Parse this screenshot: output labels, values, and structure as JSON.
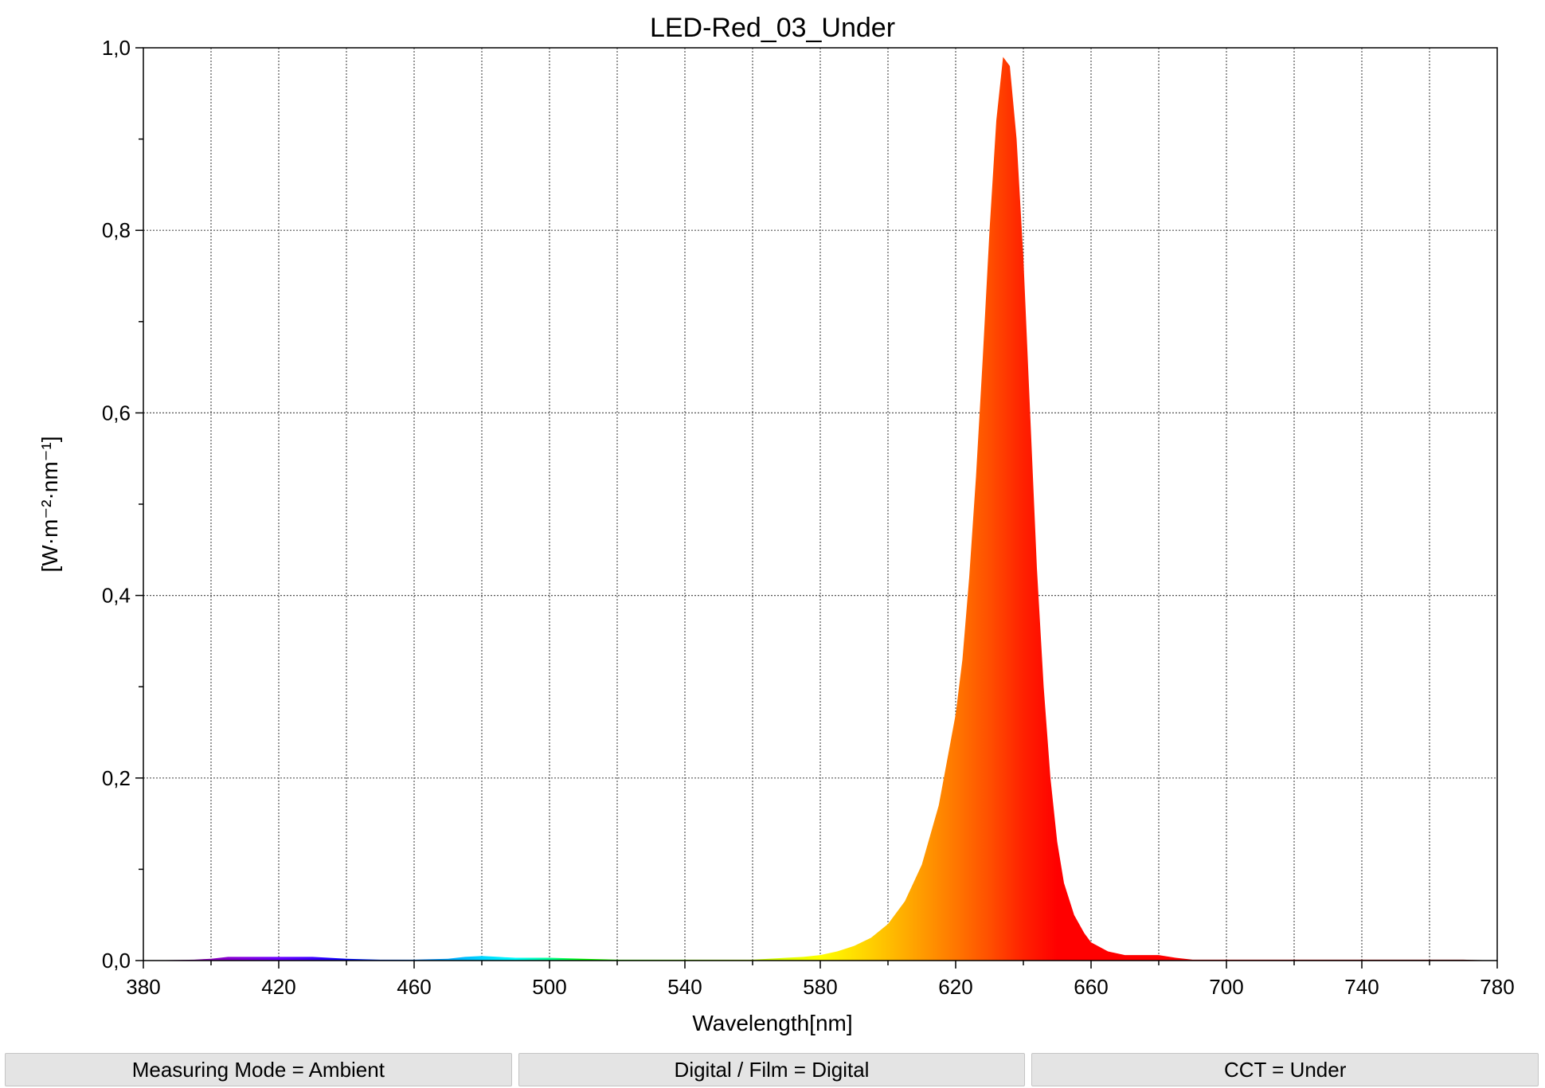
{
  "chart_data": {
    "type": "area",
    "title": "LED-Red_03_Under",
    "xlabel": "Wavelength[nm]",
    "ylabel": "[W·m⁻²·nm⁻¹]",
    "xlim": [
      380,
      780
    ],
    "ylim": [
      0,
      1.0
    ],
    "x_ticks": [
      "380",
      "420",
      "460",
      "500",
      "540",
      "580",
      "620",
      "660",
      "700",
      "740",
      "780"
    ],
    "y_ticks": [
      "0,0",
      "0,2",
      "0,4",
      "0,6",
      "0,8",
      "1,0"
    ],
    "grid": true,
    "fill": "spectral colors by wavelength",
    "series": [
      {
        "x": [
          380,
          395,
          400,
          405,
          410,
          420,
          430,
          440,
          450,
          460,
          470,
          475,
          480,
          485,
          490,
          500,
          510,
          520,
          530,
          540,
          550,
          560,
          570,
          575,
          580,
          585,
          590,
          595,
          600,
          605,
          610,
          615,
          620,
          622,
          624,
          626,
          628,
          630,
          632,
          634,
          636,
          638,
          640,
          642,
          644,
          646,
          648,
          650,
          652,
          655,
          658,
          660,
          665,
          670,
          675,
          680,
          685,
          690,
          700,
          720,
          740,
          760,
          770,
          780
        ],
        "y": [
          0,
          0.001,
          0.002,
          0.004,
          0.004,
          0.004,
          0.004,
          0.002,
          0.001,
          0.001,
          0.002,
          0.004,
          0.005,
          0.004,
          0.003,
          0.003,
          0.002,
          0.001,
          0.001,
          0.001,
          0.001,
          0.001,
          0.003,
          0.004,
          0.006,
          0.01,
          0.016,
          0.025,
          0.04,
          0.065,
          0.105,
          0.17,
          0.27,
          0.33,
          0.42,
          0.53,
          0.66,
          0.8,
          0.92,
          0.99,
          0.98,
          0.9,
          0.77,
          0.6,
          0.43,
          0.3,
          0.2,
          0.13,
          0.085,
          0.05,
          0.03,
          0.02,
          0.01,
          0.006,
          0.006,
          0.006,
          0.003,
          0.001,
          0.001,
          0.001,
          0.001,
          0.001,
          0.001,
          0
        ]
      }
    ]
  },
  "status_bar": {
    "measuring_mode": "Measuring Mode = Ambient",
    "digital_film": "Digital / Film = Digital",
    "cct": "CCT = Under"
  }
}
